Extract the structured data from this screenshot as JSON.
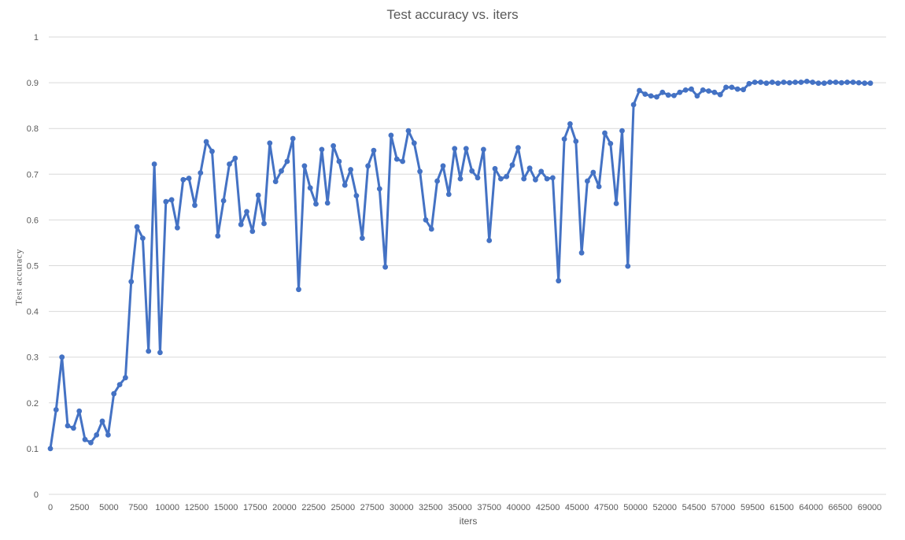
{
  "chart_data": {
    "type": "line",
    "title": "Test accuracy vs. iters",
    "xlabel": "iters",
    "ylabel": "Test  accuracy",
    "ylim": [
      0,
      1
    ],
    "yticks": [
      "0",
      "0.1",
      "0.2",
      "0.3",
      "0.4",
      "0.5",
      "0.6",
      "0.7",
      "0.8",
      "0.9",
      "1"
    ],
    "xticks": [
      "0",
      "2500",
      "5000",
      "7500",
      "10000",
      "12500",
      "15000",
      "17500",
      "20000",
      "22500",
      "25000",
      "27500",
      "30000",
      "32500",
      "35000",
      "37500",
      "40000",
      "42500",
      "45000",
      "47500",
      "50000",
      "52000",
      "54500",
      "57000",
      "59500",
      "61500",
      "64000",
      "66500",
      "69000"
    ],
    "grid": true,
    "color": "#4472c4",
    "series": [
      {
        "values": [
          0.1,
          0.185,
          0.3,
          0.15,
          0.145,
          0.182,
          0.12,
          0.113,
          0.13,
          0.16,
          0.13,
          0.22,
          0.24,
          0.255,
          0.465,
          0.585,
          0.56,
          0.313,
          0.722,
          0.31,
          0.64,
          0.644,
          0.583,
          0.688,
          0.691,
          0.632,
          0.703,
          0.771,
          0.75,
          0.565,
          0.642,
          0.722,
          0.735,
          0.59,
          0.618,
          0.575,
          0.654,
          0.592,
          0.768,
          0.684,
          0.707,
          0.728,
          0.778,
          0.448,
          0.718,
          0.67,
          0.635,
          0.754,
          0.637,
          0.762,
          0.728,
          0.676,
          0.71,
          0.653,
          0.56,
          0.718,
          0.752,
          0.668,
          0.497,
          0.785,
          0.733,
          0.728,
          0.795,
          0.768,
          0.706,
          0.6,
          0.58,
          0.685,
          0.718,
          0.656,
          0.756,
          0.69,
          0.756,
          0.707,
          0.692,
          0.754,
          0.555,
          0.712,
          0.69,
          0.695,
          0.72,
          0.758,
          0.69,
          0.713,
          0.688,
          0.706,
          0.69,
          0.692,
          0.467,
          0.777,
          0.81,
          0.772,
          0.528,
          0.685,
          0.704,
          0.673,
          0.79,
          0.767,
          0.636,
          0.795,
          0.499,
          0.852,
          0.883,
          0.875,
          0.871,
          0.869,
          0.879,
          0.873,
          0.872,
          0.879,
          0.884,
          0.886,
          0.871,
          0.884,
          0.882,
          0.879,
          0.874,
          0.89,
          0.89,
          0.886,
          0.885,
          0.898,
          0.901,
          0.901,
          0.899,
          0.901,
          0.899,
          0.901,
          0.9,
          0.901,
          0.901,
          0.903,
          0.901,
          0.899,
          0.899,
          0.901,
          0.901,
          0.9,
          0.901,
          0.901,
          0.9,
          0.899,
          0.899
        ]
      }
    ]
  }
}
